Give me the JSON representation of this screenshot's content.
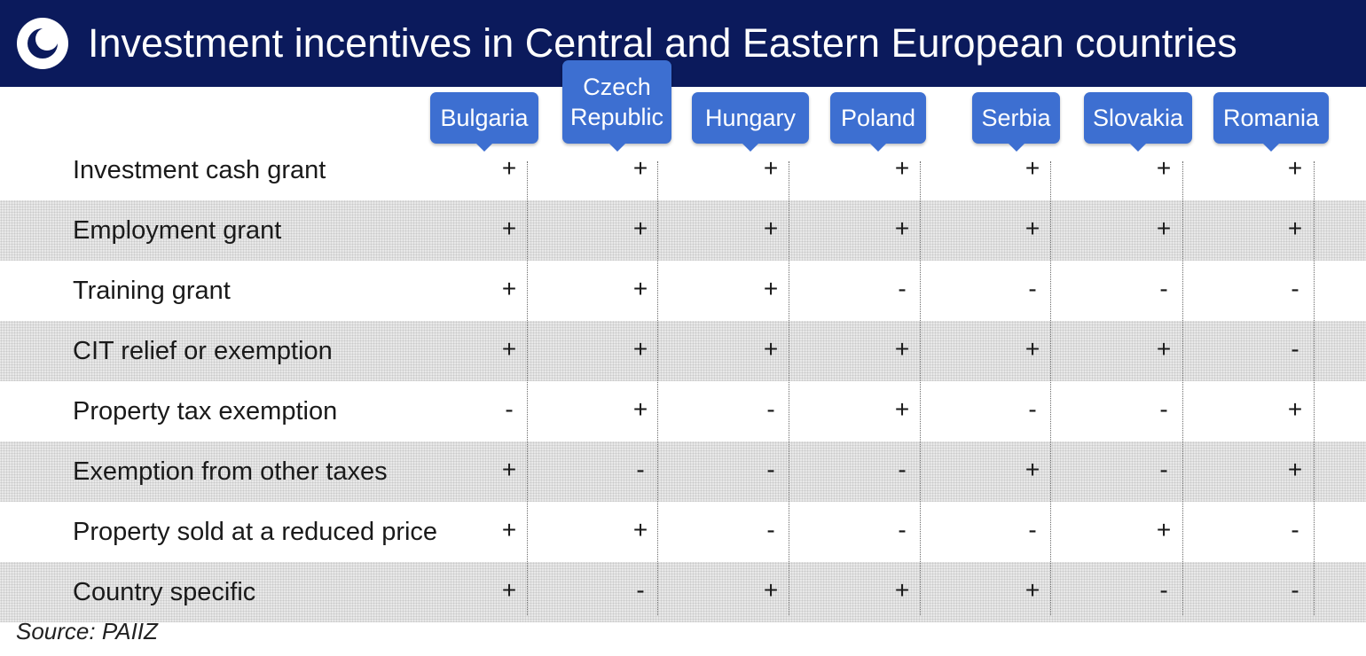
{
  "header": {
    "title": "Investment incentives in Central and Eastern European countries"
  },
  "colors": {
    "header_background": "#0b1a5c",
    "country_tag": "#3d6fd1"
  },
  "chart_data": {
    "type": "table",
    "columns": [
      "Bulgaria",
      "Czech Republic",
      "Hungary",
      "Poland",
      "Serbia",
      "Slovakia",
      "Romania"
    ],
    "rows": [
      {
        "label": "Investment cash grant",
        "values": [
          "+",
          "+",
          "+",
          "+",
          "+",
          "+",
          "+"
        ]
      },
      {
        "label": "Employment grant",
        "values": [
          "+",
          "+",
          "+",
          "+",
          "+",
          "+",
          "+"
        ]
      },
      {
        "label": "Training grant",
        "values": [
          "+",
          "+",
          "+",
          "-",
          "-",
          "-",
          "-"
        ]
      },
      {
        "label": "CIT relief or exemption",
        "values": [
          "+",
          "+",
          "+",
          "+",
          "+",
          "+",
          "-"
        ]
      },
      {
        "label": "Property tax exemption",
        "values": [
          "-",
          "+",
          "-",
          "+",
          "-",
          "-",
          "+"
        ]
      },
      {
        "label": "Exemption from other taxes",
        "values": [
          "+",
          "-",
          "-",
          "-",
          "+",
          "-",
          "+"
        ]
      },
      {
        "label": "Property sold at a reduced price",
        "values": [
          "+",
          "+",
          "-",
          "-",
          "-",
          "+",
          "-"
        ]
      },
      {
        "label": "Country specific",
        "values": [
          "+",
          "-",
          "+",
          "+",
          "+",
          "-",
          "-"
        ]
      }
    ]
  },
  "footer": {
    "source": "Source: PAIIZ"
  }
}
